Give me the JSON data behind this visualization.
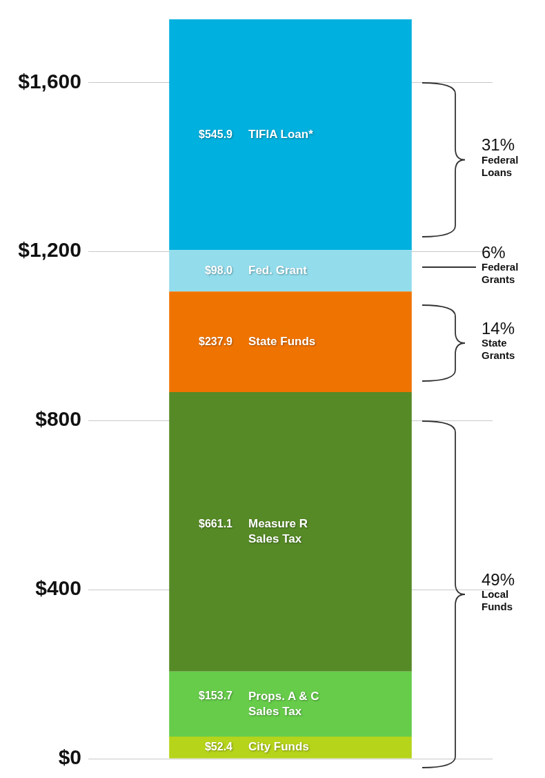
{
  "chart_data": {
    "type": "bar",
    "stacked": true,
    "categories": [
      null
    ],
    "series": [
      {
        "name": "City Funds",
        "color": "#b5d41a",
        "values": [
          52.4
        ],
        "value_labels": [
          "$52.4"
        ]
      },
      {
        "name": "Props. A & C Sales Tax",
        "color": "#66cc4a",
        "values": [
          153.7
        ],
        "value_labels": [
          "$153.7"
        ]
      },
      {
        "name": "Measure R Sales Tax",
        "color": "#568a26",
        "values": [
          661.1
        ],
        "value_labels": [
          "$661.1"
        ]
      },
      {
        "name": "State Funds",
        "color": "#ef7300",
        "values": [
          237.9
        ],
        "value_labels": [
          "$237.9"
        ]
      },
      {
        "name": "Fed. Grant",
        "color": "#92dcec",
        "values": [
          98.0
        ],
        "value_labels": [
          "$98.0"
        ]
      },
      {
        "name": "TIFIA Loan*",
        "color": "#00b0de",
        "values": [
          545.9
        ],
        "value_labels": [
          "$545.9"
        ]
      }
    ],
    "ylim": [
      0,
      1749
    ],
    "yticks": [
      {
        "value": 0,
        "label": "$0"
      },
      {
        "value": 400,
        "label": "$400"
      },
      {
        "value": 800,
        "label": "$800"
      },
      {
        "value": 1200,
        "label": "$1,200"
      },
      {
        "value": 1600,
        "label": "$1,600"
      }
    ],
    "grid": "y",
    "legend": false,
    "annotations": [
      "31%\nFederal\nLoans",
      "6%\nFederal\nGrants",
      "14%\nState\nGrants",
      "49%\nLocal\nFunds"
    ]
  }
}
